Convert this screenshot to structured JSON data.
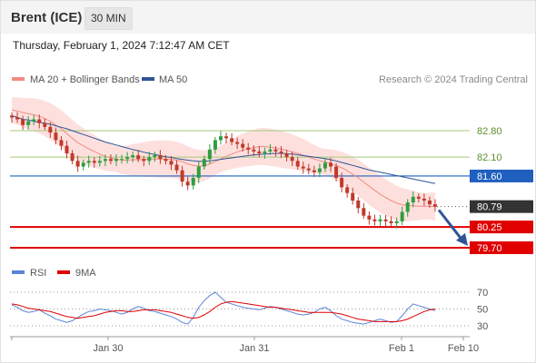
{
  "header": {
    "instrument": "Brent (ICE)",
    "timeframe": "30 MIN",
    "timestamp": "Thursday, February 1, 2024 7:12:47 AM CET"
  },
  "legend": {
    "items": [
      {
        "label": "MA 20 + Bollinger Bands",
        "color": "#f28b82"
      },
      {
        "label": "MA 50",
        "color": "#2f5597"
      }
    ],
    "credit": "Research © 2024 Trading Central"
  },
  "rsi_legend": {
    "items": [
      {
        "label": "RSI",
        "color": "#5b84d6"
      },
      {
        "label": "9MA",
        "color": "#e00000"
      }
    ]
  },
  "colors": {
    "up_candle": "#2e9e3e",
    "down_candle": "#c0392b",
    "band_fill": "#fde0de",
    "support_line": "#e00000",
    "pivot_line": "#1f5fbf",
    "resistance_line": "#a4c97a",
    "last_price": "#333333",
    "forecast_arrow": "#2f5597"
  },
  "chart_data": [
    {
      "type": "candlestick",
      "title": "",
      "x_tick_labels": [
        "Jan 30",
        "Jan 31",
        "Feb 1",
        "Feb 10"
      ],
      "ylim": [
        79.4,
        83.6
      ],
      "grid": false,
      "legend_position": "top-left",
      "levels": [
        {
          "value": 82.8,
          "label": "82.80",
          "kind": "resistance"
        },
        {
          "value": 82.1,
          "label": "82.10",
          "kind": "resistance"
        },
        {
          "value": 81.6,
          "label": "81.60",
          "kind": "pivot"
        },
        {
          "value": 80.79,
          "label": "80.79",
          "kind": "last"
        },
        {
          "value": 80.25,
          "label": "80.25",
          "kind": "support"
        },
        {
          "value": 79.7,
          "label": "79.70",
          "kind": "support"
        }
      ],
      "forecast": {
        "from": 80.7,
        "to": 79.8
      },
      "close": [
        83.15,
        83.1,
        82.95,
        83.05,
        83.1,
        83.0,
        82.9,
        82.75,
        82.55,
        82.4,
        82.2,
        82.0,
        81.85,
        81.95,
        82.0,
        81.95,
        82.0,
        82.05,
        82.0,
        82.05,
        82.05,
        82.1,
        82.15,
        82.05,
        82.0,
        82.1,
        82.15,
        82.05,
        82.0,
        81.9,
        81.75,
        81.45,
        81.35,
        81.55,
        81.85,
        82.05,
        82.3,
        82.55,
        82.65,
        82.6,
        82.5,
        82.45,
        82.35,
        82.3,
        82.25,
        82.2,
        82.25,
        82.3,
        82.25,
        82.2,
        82.1,
        82.0,
        81.85,
        81.8,
        81.75,
        81.7,
        81.8,
        81.95,
        81.85,
        81.55,
        81.3,
        81.15,
        80.95,
        80.75,
        80.55,
        80.45,
        80.4,
        80.45,
        80.4,
        80.35,
        80.4,
        80.65,
        80.9,
        81.05,
        81.0,
        80.95,
        80.85,
        80.79
      ],
      "ma20": [
        83.35,
        83.32,
        83.28,
        83.25,
        83.22,
        83.18,
        83.12,
        83.05,
        82.95,
        82.85,
        82.72,
        82.6,
        82.48,
        82.4,
        82.32,
        82.25,
        82.18,
        82.12,
        82.08,
        82.05,
        82.02,
        82.02,
        82.03,
        82.03,
        82.04,
        82.05,
        82.05,
        82.05,
        82.05,
        82.04,
        82.02,
        81.98,
        81.92,
        81.88,
        81.86,
        81.87,
        81.92,
        81.98,
        82.05,
        82.12,
        82.18,
        82.24,
        82.28,
        82.32,
        82.35,
        82.38,
        82.38,
        82.36,
        82.34,
        82.31,
        82.28,
        82.24,
        82.2,
        82.15,
        82.1,
        82.05,
        82.0,
        81.97,
        81.93,
        81.88,
        81.82,
        81.74,
        81.65,
        81.55,
        81.44,
        81.33,
        81.22,
        81.12,
        81.03,
        80.95,
        80.88,
        80.84,
        80.82,
        80.81,
        80.8,
        80.8,
        80.8,
        80.79
      ],
      "ma50": [
        83.2,
        83.15,
        83.1,
        83.08,
        83.05,
        83.02,
        83.0,
        82.97,
        82.93,
        82.89,
        82.85,
        82.8,
        82.75,
        82.7,
        82.65,
        82.6,
        82.55,
        82.5,
        82.46,
        82.42,
        82.38,
        82.34,
        82.3,
        82.27,
        82.23,
        82.2,
        82.17,
        82.14,
        82.11,
        82.09,
        82.06,
        82.04,
        82.02,
        82.0,
        81.99,
        81.99,
        82.0,
        82.02,
        82.04,
        82.06,
        82.08,
        82.1,
        82.12,
        82.14,
        82.16,
        82.17,
        82.18,
        82.19,
        82.2,
        82.2,
        82.19,
        82.18,
        82.16,
        82.14,
        82.12,
        82.1,
        82.08,
        82.06,
        82.03,
        82.0,
        81.96,
        81.92,
        81.88,
        81.84,
        81.8,
        81.76,
        81.73,
        81.7,
        81.67,
        81.64,
        81.61,
        81.58,
        81.55,
        81.52,
        81.49,
        81.46,
        81.43,
        81.4
      ],
      "bollinger_width": 0.45
    },
    {
      "type": "line",
      "title": "",
      "ylim": [
        20,
        80
      ],
      "y_tick_labels": [
        "70",
        "50",
        "30"
      ],
      "y_ticks": [
        70,
        50,
        30
      ],
      "series": [
        {
          "name": "RSI",
          "values": [
            55,
            52,
            48,
            46,
            47,
            49,
            45,
            42,
            38,
            36,
            34,
            36,
            40,
            44,
            47,
            48,
            50,
            49,
            48,
            46,
            44,
            46,
            50,
            53,
            51,
            48,
            47,
            45,
            43,
            41,
            38,
            34,
            32,
            40,
            52,
            60,
            66,
            70,
            64,
            58,
            56,
            54,
            52,
            51,
            50,
            49,
            51,
            53,
            52,
            50,
            48,
            46,
            44,
            43,
            44,
            46,
            50,
            52,
            48,
            42,
            38,
            36,
            34,
            33,
            32,
            34,
            36,
            38,
            36,
            34,
            35,
            42,
            50,
            56,
            54,
            52,
            50,
            48
          ]
        },
        {
          "name": "9MA",
          "values": [
            56,
            55,
            53,
            51,
            50,
            49,
            48,
            47,
            45,
            43,
            41,
            40,
            39,
            40,
            41,
            42,
            44,
            46,
            47,
            48,
            48,
            47,
            47,
            48,
            49,
            49,
            49,
            48,
            47,
            46,
            44,
            42,
            40,
            39,
            40,
            43,
            47,
            52,
            56,
            58,
            59,
            58,
            57,
            56,
            55,
            54,
            53,
            52,
            52,
            51,
            50,
            49,
            48,
            47,
            46,
            46,
            46,
            46,
            46,
            45,
            44,
            42,
            40,
            38,
            37,
            36,
            35,
            35,
            35,
            35,
            35,
            36,
            38,
            41,
            44,
            47,
            49,
            50
          ]
        }
      ]
    }
  ]
}
